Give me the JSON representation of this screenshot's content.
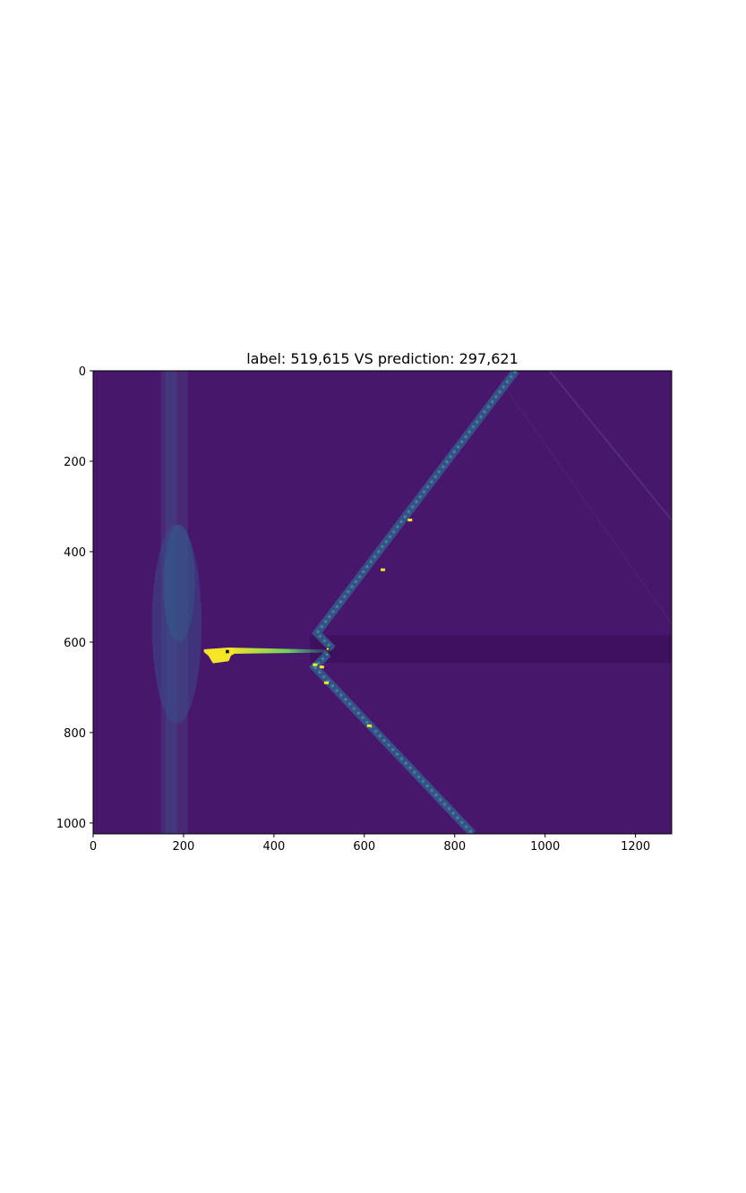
{
  "chart_data": {
    "type": "heatmap",
    "title": "label: 519,615    VS   prediction: 297,621",
    "colormap": "viridis",
    "xlim": [
      0,
      1280
    ],
    "ylim": [
      1024,
      0
    ],
    "xticks": [
      0,
      200,
      400,
      600,
      800,
      1000,
      1200
    ],
    "yticks": [
      0,
      200,
      400,
      600,
      800,
      1000
    ],
    "markers": [
      {
        "name": "label",
        "x": 519,
        "y": 615
      },
      {
        "name": "prediction",
        "x": 297,
        "y": 621
      }
    ],
    "colors": {
      "background": "#47166d",
      "stripe": "#3f0f60",
      "bright": "#f5e627",
      "teal": "#2f8f8c",
      "mid": "#39548c",
      "marker": "#111111"
    }
  }
}
